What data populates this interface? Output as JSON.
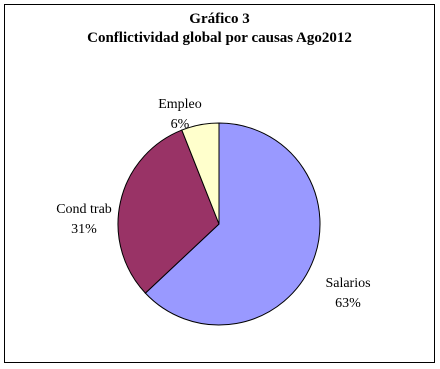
{
  "chart_data": {
    "type": "pie",
    "title": "Gráfico 3",
    "subtitle": "Conflictividad global por causas Ago2012",
    "slices": [
      {
        "label": "Salarios",
        "value": 63,
        "value_label": "63%",
        "color": "#9999FF"
      },
      {
        "label": "Cond trab",
        "value": 31,
        "value_label": "31%",
        "color": "#993366"
      },
      {
        "label": "Empleo",
        "value": 6,
        "value_label": "6%",
        "color": "#FFFFCC"
      }
    ],
    "legend": "none"
  }
}
